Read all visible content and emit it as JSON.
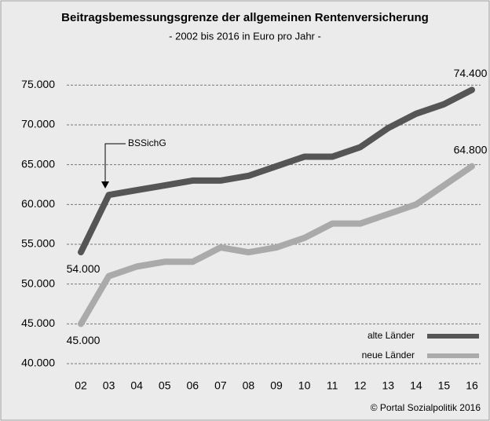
{
  "chart_data": {
    "type": "line",
    "title": "Beitragsbemessungsgrenze der allgemeinen Rentenversicherung",
    "subtitle": "- 2002 bis 2016 in Euro pro Jahr -",
    "source": "© Portal Sozialpolitik 2016",
    "annotation": "BSSichG",
    "categories": [
      "02",
      "03",
      "04",
      "05",
      "06",
      "07",
      "08",
      "09",
      "10",
      "11",
      "12",
      "13",
      "14",
      "15",
      "16"
    ],
    "series": [
      {
        "name": "alte Länder",
        "color": "#555555",
        "values": [
          54000,
          61200,
          61800,
          62400,
          63000,
          63000,
          63600,
          64800,
          66000,
          66000,
          67200,
          69600,
          71400,
          72600,
          74400
        ],
        "value_labels": [
          "54.000",
          null,
          null,
          null,
          null,
          null,
          null,
          null,
          null,
          null,
          null,
          null,
          null,
          null,
          "74.400"
        ]
      },
      {
        "name": "neue Länder",
        "color": "#aaaaaa",
        "values": [
          45000,
          51000,
          52200,
          52800,
          52800,
          54600,
          54000,
          54600,
          55800,
          57600,
          57600,
          58800,
          60000,
          62400,
          64800
        ],
        "value_labels": [
          "45.000",
          null,
          null,
          null,
          null,
          null,
          null,
          null,
          null,
          null,
          null,
          null,
          null,
          null,
          "64.800"
        ]
      }
    ],
    "ylim": [
      40000,
      77500
    ],
    "yticks": [
      {
        "value": 40000,
        "label": "40.000"
      },
      {
        "value": 45000,
        "label": "45.000"
      },
      {
        "value": 50000,
        "label": "50.000"
      },
      {
        "value": 55000,
        "label": "55.000"
      },
      {
        "value": 60000,
        "label": "60.000"
      },
      {
        "value": 65000,
        "label": "65.000"
      },
      {
        "value": 70000,
        "label": "70.000"
      },
      {
        "value": 75000,
        "label": "75.000"
      }
    ],
    "grid": true,
    "legend": "lower right"
  }
}
